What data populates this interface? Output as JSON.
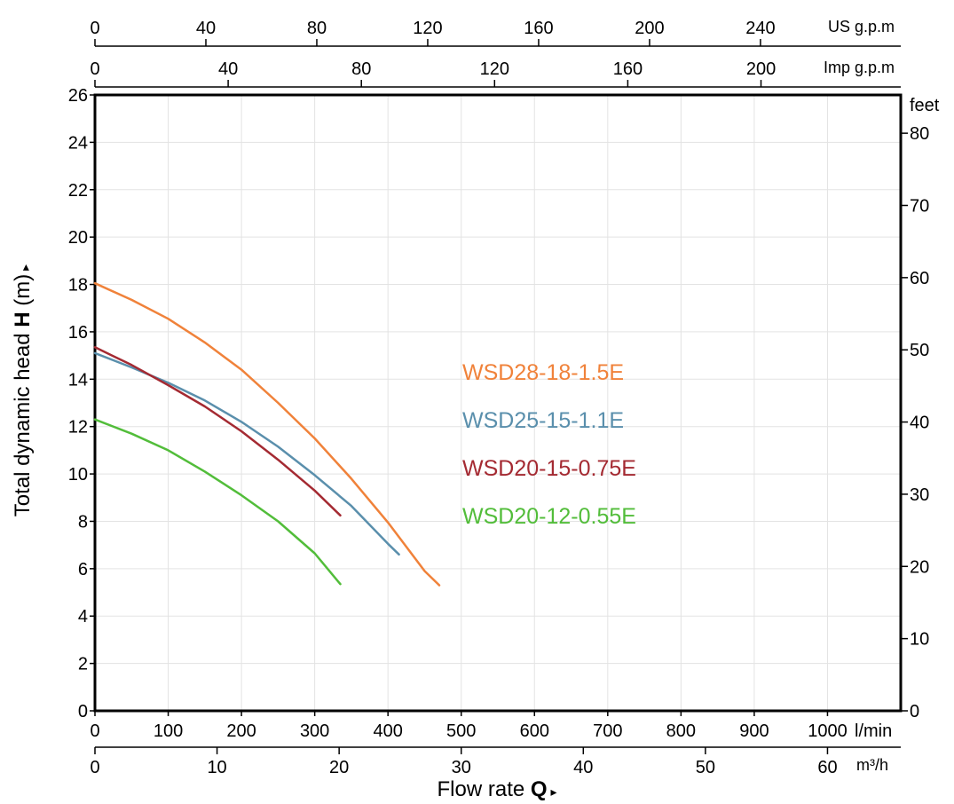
{
  "chart_data": {
    "type": "line",
    "ylabel": {
      "prefix": "Total dynamic head ",
      "bold": "H",
      "suffix": " (m)",
      "arrow": "▸"
    },
    "xlabel": {
      "prefix": "Flow rate ",
      "bold": "Q",
      "arrow": "▸"
    },
    "x_unit": "l/min",
    "xlim": [
      0,
      1100
    ],
    "ylim": [
      0,
      26
    ],
    "grid": true,
    "x_ticks": [
      0,
      100,
      200,
      300,
      400,
      500,
      600,
      700,
      800,
      900,
      1000
    ],
    "y_ticks": [
      0,
      2,
      4,
      6,
      8,
      10,
      12,
      14,
      16,
      18,
      20,
      22,
      24,
      26
    ],
    "secondary_axes": {
      "us_gpm": {
        "label": "US g.p.m",
        "ticks": [
          0,
          40,
          80,
          120,
          160,
          200,
          240
        ]
      },
      "imp_gpm": {
        "label": "Imp g.p.m",
        "ticks": [
          0,
          40,
          80,
          120,
          160,
          200
        ]
      },
      "m3h": {
        "label": "m³/h",
        "ticks": [
          0,
          10,
          20,
          30,
          40,
          50,
          60
        ]
      },
      "feet": {
        "label": "feet",
        "ticks": [
          0,
          10,
          20,
          30,
          40,
          50,
          60,
          70,
          80
        ]
      }
    },
    "series": [
      {
        "name": "WSD28-18-1.5E",
        "color": "#f0823a",
        "x": [
          0,
          50,
          100,
          150,
          200,
          250,
          300,
          350,
          400,
          450,
          470
        ],
        "y": [
          18.05,
          17.35,
          16.55,
          15.55,
          14.4,
          13.0,
          11.5,
          9.8,
          7.95,
          5.9,
          5.3
        ]
      },
      {
        "name": "WSD25-15-1.1E",
        "color": "#5a8fac",
        "x": [
          0,
          50,
          100,
          150,
          200,
          250,
          300,
          350,
          400,
          415
        ],
        "y": [
          15.1,
          14.5,
          13.85,
          13.1,
          12.2,
          11.15,
          9.95,
          8.65,
          7.05,
          6.6
        ]
      },
      {
        "name": "WSD20-15-0.75E",
        "color": "#a42a32",
        "x": [
          0,
          50,
          100,
          150,
          200,
          250,
          300,
          335
        ],
        "y": [
          15.35,
          14.6,
          13.75,
          12.85,
          11.8,
          10.6,
          9.3,
          8.25
        ]
      },
      {
        "name": "WSD20-12-0.55E",
        "color": "#52bd3a",
        "x": [
          0,
          50,
          100,
          150,
          200,
          250,
          300,
          335
        ],
        "y": [
          12.3,
          11.7,
          11.0,
          10.1,
          9.1,
          8.0,
          6.65,
          5.35
        ]
      }
    ]
  }
}
